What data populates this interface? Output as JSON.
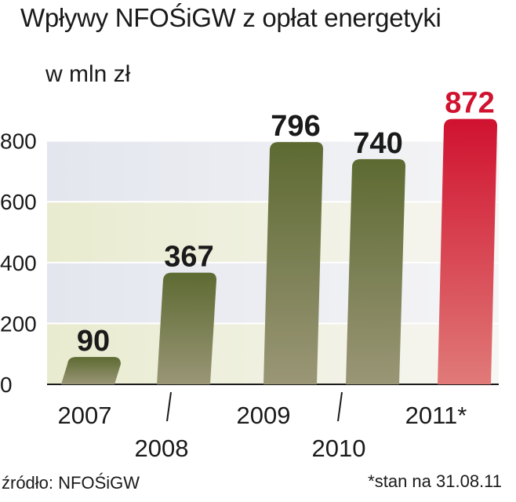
{
  "title": "Wpływy NFOŚiGW z opłat energetyki",
  "subtitle": "w mln zł",
  "source": "źródło: NFOŚiGW",
  "note": "*stan na 31.08.11",
  "colors": {
    "bar_top": "#5d6a32",
    "bar_bottom": "#9a9676",
    "highlight_top": "#d0122f",
    "highlight_bottom": "#e07a78",
    "highlight_label": "#d0122f",
    "band_light": "#e4e7ec",
    "band_tint": "#dedfcd"
  },
  "chart_data": {
    "type": "bar",
    "categories": [
      "2007",
      "2008",
      "2009",
      "2010",
      "2011*"
    ],
    "values": [
      90,
      367,
      796,
      740,
      872
    ],
    "data_labels": [
      "90",
      "367",
      "796",
      "740",
      "872"
    ],
    "highlight_index": 4,
    "yticks": [
      "0",
      "200",
      "400",
      "600",
      "800"
    ],
    "ylim": [
      0,
      872
    ],
    "grid": true
  }
}
